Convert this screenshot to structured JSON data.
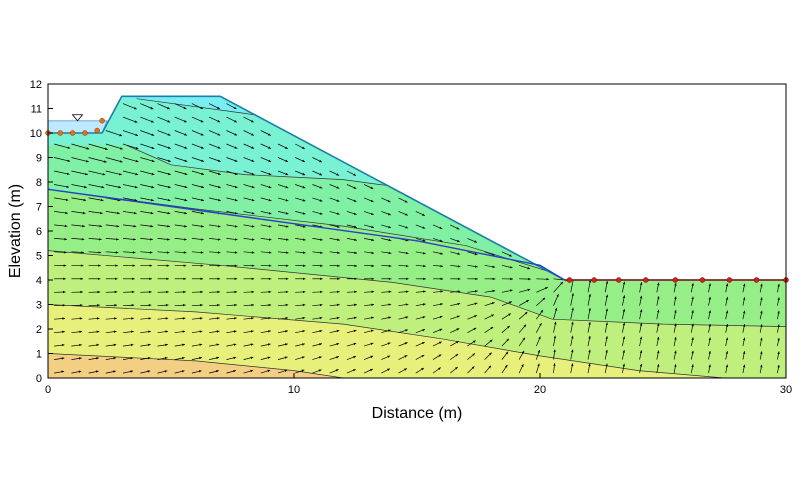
{
  "chart_data": {
    "type": "contour",
    "xlabel": "Distance (m)",
    "ylabel": "Elevation (m)",
    "xlim": [
      0,
      30
    ],
    "ylim": [
      0,
      12
    ],
    "x_ticks": [
      0,
      10,
      20,
      30
    ],
    "y_ticks": [
      0,
      1,
      2,
      3,
      4,
      5,
      6,
      7,
      8,
      9,
      10,
      11,
      12
    ],
    "reservoir_level": 10.5,
    "ground_profile": [
      [
        0,
        10
      ],
      [
        2.2,
        10
      ],
      [
        3,
        11.5
      ],
      [
        7,
        11.5
      ],
      [
        21,
        4
      ],
      [
        30,
        4
      ]
    ],
    "phreatic_surface": [
      [
        0,
        7.7
      ],
      [
        5,
        7
      ],
      [
        10,
        6.3
      ],
      [
        15,
        5.6
      ],
      [
        20,
        4.6
      ],
      [
        21,
        4
      ]
    ],
    "head_boundary_points": [
      [
        0,
        10
      ],
      [
        0.5,
        10
      ],
      [
        1,
        10
      ],
      [
        1.5,
        10
      ],
      [
        2,
        10.1
      ],
      [
        2.2,
        10.5
      ]
    ],
    "seepage_boundary_points": [
      [
        21.2,
        4
      ],
      [
        22.2,
        4
      ],
      [
        23.2,
        4
      ],
      [
        24.3,
        4
      ],
      [
        25.5,
        4
      ],
      [
        26.6,
        4
      ],
      [
        27.7,
        4
      ],
      [
        28.8,
        4
      ],
      [
        30,
        4
      ]
    ],
    "contour_colors": [
      "#f06b6b",
      "#f5b27a",
      "#f2cf82",
      "#e6f07a",
      "#bff07d",
      "#96ee86",
      "#80f0a4",
      "#78f2d2",
      "#78eef0",
      "#6b9ef0"
    ],
    "contour_bands": [
      {
        "top": [
          [
            0,
            12
          ],
          [
            30,
            12
          ]
        ]
      },
      {
        "top": [
          [
            3,
            11.5
          ],
          [
            7,
            11.5
          ],
          [
            9,
            11.5
          ]
        ]
      },
      {
        "top": [
          [
            3.6,
            11.4
          ],
          [
            8,
            10.8
          ],
          [
            12,
            10.2
          ]
        ]
      },
      {
        "top": [
          [
            3.2,
            9.5
          ],
          [
            5,
            8.7
          ],
          [
            8,
            8.3
          ],
          [
            10,
            8.2
          ],
          [
            12,
            8.1
          ],
          [
            14.2,
            7.8
          ]
        ]
      },
      {
        "top": [
          [
            0,
            7.7
          ],
          [
            6,
            6.9
          ],
          [
            12,
            6.2
          ],
          [
            17,
            5.4
          ],
          [
            20.5,
            4.3
          ],
          [
            30,
            4.3
          ]
        ]
      },
      {
        "top": [
          [
            0,
            5.2
          ],
          [
            7,
            4.6
          ],
          [
            14,
            3.9
          ],
          [
            18,
            3.3
          ],
          [
            20.5,
            2.4
          ],
          [
            25,
            2.2
          ],
          [
            30,
            2.1
          ]
        ]
      },
      {
        "top": [
          [
            0,
            3
          ],
          [
            6,
            2.7
          ],
          [
            12,
            2.2
          ],
          [
            16,
            1.6
          ],
          [
            20,
            0.9
          ],
          [
            24,
            0.3
          ],
          [
            27.5,
            0
          ]
        ]
      },
      {
        "top": [
          [
            0,
            1
          ],
          [
            6,
            0.7
          ],
          [
            10,
            0.3
          ],
          [
            12,
            0
          ]
        ]
      }
    ]
  }
}
